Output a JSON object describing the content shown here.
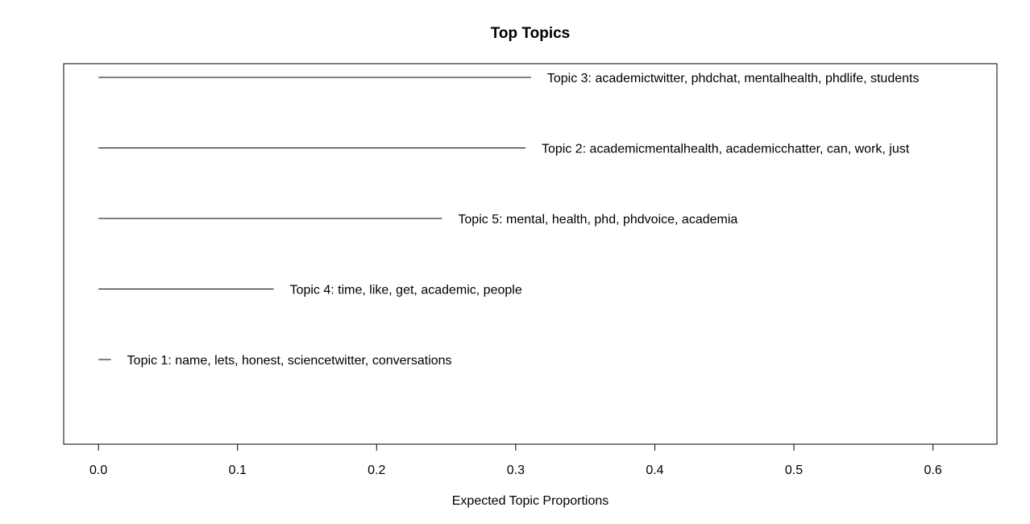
{
  "chart_data": {
    "type": "bar",
    "orientation": "horizontal",
    "title": "Top Topics",
    "xlabel": "Expected Topic Proportions",
    "ylabel": "",
    "xlim": [
      -0.025,
      0.646
    ],
    "x_ticks": [
      "0.0",
      "0.1",
      "0.2",
      "0.3",
      "0.4",
      "0.5",
      "0.6"
    ],
    "grid": false,
    "legend": "none",
    "bars": [
      {
        "label": "Topic 3: academictwitter, phdchat, mentalhealth, phdlife, students",
        "value": 0.311
      },
      {
        "label": "Topic 2: academicmentalhealth, academicchatter, can, work, just",
        "value": 0.307
      },
      {
        "label": "Topic 5: mental, health, phd, phdvoice, academia",
        "value": 0.247
      },
      {
        "label": "Topic 4: time, like, get, academic, people",
        "value": 0.126
      },
      {
        "label": "Topic 1: name, lets, honest, sciencetwitter, conversations",
        "value": 0.009
      }
    ],
    "colors": {
      "line": "#000000",
      "background": "#ffffff"
    }
  }
}
